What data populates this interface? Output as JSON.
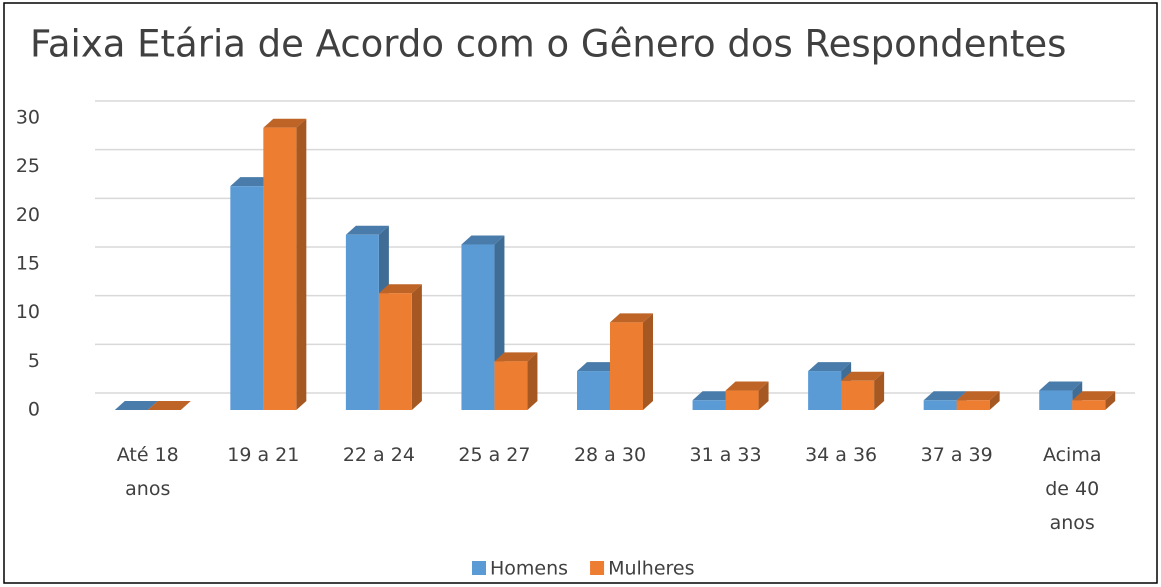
{
  "chart_data": {
    "type": "bar3d",
    "title": "Faixa Etária de Acordo com o Gênero dos Respondentes",
    "categories": [
      "Até 18 anos",
      "19 a 21",
      "22 a 24",
      "25 a 27",
      "28 a 30",
      "31 a 33",
      "34 a 36",
      "37 a 39",
      "Acima de 40 anos"
    ],
    "series": [
      {
        "name": "Homens",
        "color": "#5b9bd5",
        "values": [
          0,
          23,
          18,
          17,
          4,
          1,
          4,
          1,
          2
        ]
      },
      {
        "name": "Mulheres",
        "color": "#ed7d31",
        "values": [
          0,
          29,
          12,
          5,
          9,
          2,
          3,
          1,
          1
        ]
      }
    ],
    "ylim": [
      0,
      30
    ],
    "yticks": [
      0,
      5,
      10,
      15,
      20,
      25,
      30
    ],
    "grid": true,
    "legend": "bottom"
  }
}
